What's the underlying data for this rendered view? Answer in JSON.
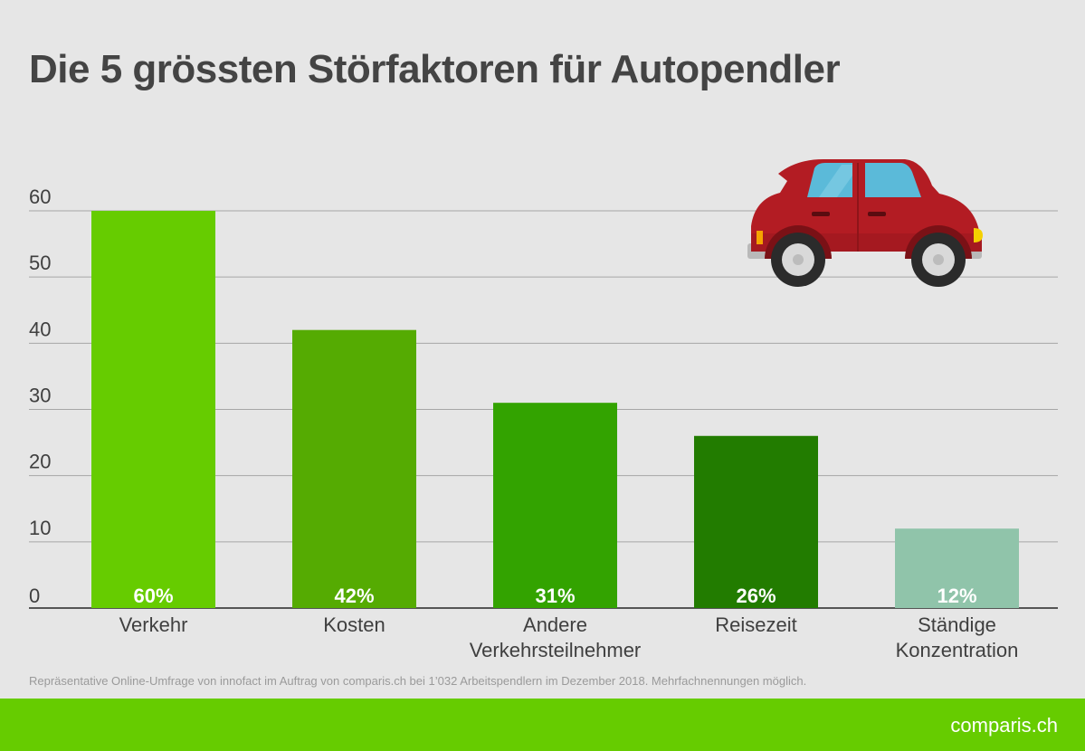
{
  "title": "Die 5 grössten Störfaktoren für Autopendler",
  "footnote": "Repräsentative Online-Umfrage von innofact im Auftrag von comparis.ch bei 1’032 Arbeitspendlern im Dezember 2018. Mehrfachnennungen möglich.",
  "brand": "comparis.ch",
  "chart_data": {
    "type": "bar",
    "categories": [
      [
        "Verkehr"
      ],
      [
        "Kosten"
      ],
      [
        "Andere",
        "Verkehrsteilnehmer"
      ],
      [
        "Reisezeit"
      ],
      [
        "Ständige",
        "Konzentration"
      ]
    ],
    "values": [
      60,
      42,
      31,
      26,
      12
    ],
    "value_labels": [
      "60%",
      "42%",
      "31%",
      "26%",
      "12%"
    ],
    "bar_colors": [
      "#66cc00",
      "#55ab02",
      "#33a300",
      "#227c00",
      "#90c4aa"
    ],
    "yticks": [
      "0",
      "10",
      "20",
      "30",
      "40",
      "50",
      "60"
    ],
    "ylim": [
      0,
      60
    ],
    "grid": true,
    "title": "Die 5 grössten Störfaktoren für Autopendler",
    "xlabel": "",
    "ylabel": ""
  },
  "decoration": {
    "car_icon": "car-icon",
    "car_color": "#b31c23",
    "window_color": "#5bbad9"
  },
  "colors": {
    "background": "#e6e6e6",
    "footer": "#66cc00",
    "grid": "#a6a6a6",
    "text": "#3f3f3f"
  }
}
